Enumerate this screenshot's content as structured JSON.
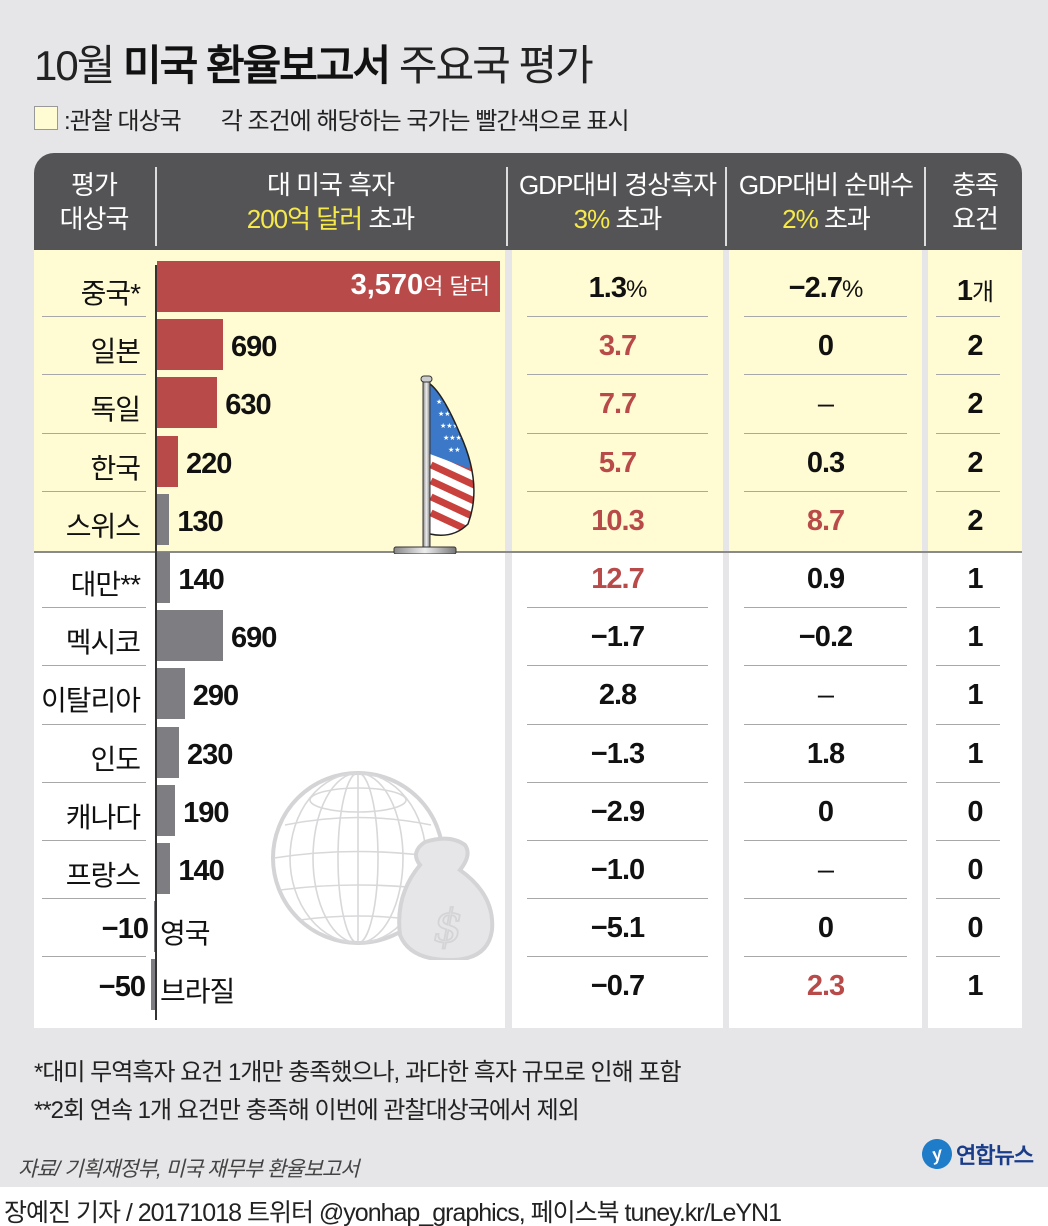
{
  "title": {
    "prefix": "10월 ",
    "bold": "미국 환율보고서",
    "suffix": " 주요국 평가"
  },
  "legend": {
    "swatch_label": ":관찰 대상국",
    "note": "각 조건에 해당하는 국가는  빨간색으로 표시"
  },
  "header": {
    "col1": {
      "line1": "평가",
      "line2": "대상국"
    },
    "col2": {
      "line1": "대 미국 흑자",
      "line2_highlight": "200억 달러",
      "line2_rest": " 초과"
    },
    "col3": {
      "line1": "GDP대비 경상흑자",
      "line2_highlight": "3%",
      "line2_rest": " 초과"
    },
    "col4": {
      "line1": "GDP대비 순매수",
      "line2_highlight": "2%",
      "line2_rest": " 초과"
    },
    "col5": {
      "line1": "충족",
      "line2": "요건"
    }
  },
  "rows": [
    {
      "country": "중국*",
      "surplus": "3,570",
      "surplus_unit": "억 달러",
      "current_account": "1.3",
      "ca_unit": "%",
      "net_purchase": "−2.7",
      "np_unit": "%",
      "met": "1",
      "met_unit": "개"
    },
    {
      "country": "일본",
      "surplus": "690",
      "current_account": "3.7",
      "net_purchase": "0",
      "met": "2"
    },
    {
      "country": "독일",
      "surplus": "630",
      "current_account": "7.7",
      "net_purchase": "–",
      "met": "2"
    },
    {
      "country": "한국",
      "surplus": "220",
      "current_account": "5.7",
      "net_purchase": "0.3",
      "met": "2"
    },
    {
      "country": "스위스",
      "surplus": "130",
      "current_account": "10.3",
      "net_purchase": "8.7",
      "met": "2"
    },
    {
      "country": "대만**",
      "surplus": "140",
      "current_account": "12.7",
      "net_purchase": "0.9",
      "met": "1"
    },
    {
      "country": "멕시코",
      "surplus": "690",
      "current_account": "−1.7",
      "net_purchase": "−0.2",
      "met": "1"
    },
    {
      "country": "이탈리아",
      "surplus": "290",
      "current_account": "2.8",
      "net_purchase": "–",
      "met": "1"
    },
    {
      "country": "인도",
      "surplus": "230",
      "current_account": "−1.3",
      "net_purchase": "1.8",
      "met": "1"
    },
    {
      "country": "캐나다",
      "surplus": "190",
      "current_account": "−2.9",
      "net_purchase": "0",
      "met": "0"
    },
    {
      "country": "프랑스",
      "surplus": "140",
      "current_account": "−1.0",
      "net_purchase": "–",
      "met": "0"
    },
    {
      "country": "영국",
      "surplus": "−10",
      "current_account": "−5.1",
      "net_purchase": "0",
      "met": "0"
    },
    {
      "country": "브라질",
      "surplus": "−50",
      "current_account": "−0.7",
      "net_purchase": "2.3",
      "met": "1"
    }
  ],
  "footnotes": {
    "note1": "*대미 무역흑자 요건 1개만 충족했으나, 과다한 흑자 규모로 인해 포함",
    "note2": "**2회 연속 1개 요건만 충족해 이번에 관찰대상국에서 제외"
  },
  "source": "자료/ 기획재정부, 미국 재무부 환율보고서",
  "logo": {
    "text": "연합뉴스"
  },
  "credit": "장예진 기자 / 20171018 트위터 @yonhap_graphics, 페이스북 tuney.kr/LeYN1",
  "colors": {
    "background": "#e6e6e8",
    "header": "#545456",
    "header_highlight": "#f6e94a",
    "watch_row": "#fffbd3",
    "criteria_met": "#b84b49",
    "bar_gray": "#7e7e82"
  },
  "chart_data": {
    "type": "table",
    "title": "10월 미국 환율보고서 주요국 평가",
    "columns": [
      "평가 대상국",
      "대 미국 흑자 (억 달러), 기준 200억 달러 초과",
      "GDP대비 경상흑자 (%), 기준 3% 초과",
      "GDP대비 순매수 (%), 기준 2% 초과",
      "충족 요건 (개)"
    ],
    "categories": [
      "중국",
      "일본",
      "독일",
      "한국",
      "스위스",
      "대만",
      "멕시코",
      "이탈리아",
      "인도",
      "캐나다",
      "프랑스",
      "영국",
      "브라질"
    ],
    "series": [
      {
        "name": "대 미국 흑자 (억 달러)",
        "type": "bar",
        "values": [
          3570,
          690,
          630,
          220,
          130,
          140,
          690,
          290,
          230,
          190,
          140,
          -10,
          -50
        ]
      },
      {
        "name": "GDP대비 경상흑자 (%)",
        "values": [
          1.3,
          3.7,
          7.7,
          5.7,
          10.3,
          12.7,
          -1.7,
          2.8,
          -1.3,
          -2.9,
          -1.0,
          -5.1,
          -0.7
        ]
      },
      {
        "name": "GDP대비 순매수 (%)",
        "values": [
          -2.7,
          0,
          null,
          0.3,
          8.7,
          0.9,
          -0.2,
          null,
          1.8,
          0,
          null,
          0,
          2.3
        ]
      },
      {
        "name": "충족 요건 (개)",
        "values": [
          1,
          2,
          2,
          2,
          2,
          1,
          1,
          1,
          1,
          0,
          0,
          0,
          1
        ]
      }
    ],
    "watch_list": [
      "중국",
      "일본",
      "독일",
      "한국",
      "스위스"
    ],
    "thresholds": {
      "surplus": 200,
      "current_account": 3,
      "net_purchase": 2
    },
    "annotations": [
      "*대미 무역흑자 요건 1개만 충족했으나, 과다한 흑자 규모로 인해 포함",
      "**2회 연속 1개 요건만 충족해 이번에 관찰대상국에서 제외"
    ],
    "source": "자료/ 기획재정부, 미국 재무부 환율보고서"
  }
}
